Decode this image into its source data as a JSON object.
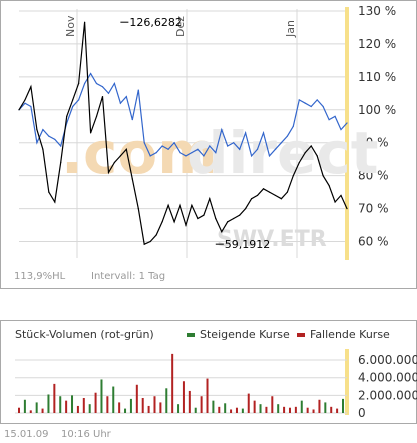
{
  "colors": {
    "price_line": "#000000",
    "index_line": "#3366cc",
    "rising": "#2e7d32",
    "falling": "#b22222",
    "grid": "#d8d8d8",
    "highlight": "#f7e08a",
    "watermark_com": "#f4d9b3",
    "watermark_direct": "#e9e9e9",
    "watermark_ticker": "#dcdcdc"
  },
  "watermark": {
    "brand_prefix": ".com",
    "brand_suffix": "direct",
    "ticker": "SWV.ETR"
  },
  "price_footer": {
    "range": "113,9%HL",
    "interval": "Intervall: 1 Tag"
  },
  "volume_panel": {
    "title": "Stück-Volumen (rot-grün)",
    "legend_rising": "Steigende Kurse",
    "legend_falling": "Fallende Kurse"
  },
  "timestamp": {
    "date": "15.01.09",
    "time": "10:16 Uhr"
  },
  "chart_data": [
    {
      "type": "line",
      "x_ticks": [
        "Nov",
        "Dez",
        "Jan"
      ],
      "y_ticks": [
        "60 %",
        "70 %",
        "80 %",
        "90 %",
        "100 %",
        "110 %",
        "120 %",
        "130 %"
      ],
      "ylim": [
        55,
        130
      ],
      "grid": true,
      "annotations": [
        {
          "label": "126,6282",
          "x": 17,
          "y": 126.6
        },
        {
          "label": "59,1912",
          "x": 33,
          "y": 59.2
        }
      ],
      "series": [
        {
          "values": [
            100,
            103,
            107,
            94,
            88,
            75,
            72,
            84,
            98,
            103,
            108,
            126.6,
            93,
            98,
            104,
            81,
            84,
            86,
            88,
            79,
            70,
            59.2,
            60,
            62,
            66,
            71,
            66,
            71,
            65,
            71,
            67,
            68,
            73,
            67,
            63,
            66,
            67,
            68,
            70,
            73,
            74,
            76,
            75,
            74,
            73,
            75,
            80,
            84,
            87,
            89,
            86,
            80,
            77,
            72,
            74,
            70
          ]
        },
        {
          "values": [
            100,
            102,
            101,
            90,
            94,
            92,
            91,
            89,
            96,
            101,
            103,
            108,
            111,
            108,
            107,
            105,
            108,
            102,
            104,
            97,
            106,
            90,
            86,
            87,
            89,
            88,
            90,
            87,
            86,
            87,
            88,
            86,
            89,
            87,
            94,
            89,
            90,
            88,
            93,
            86,
            88,
            93,
            86,
            88,
            90,
            92,
            95,
            103,
            102,
            101,
            103,
            101,
            97,
            98,
            94,
            96
          ]
        }
      ]
    },
    {
      "type": "bar",
      "y_ticks": [
        "6.000.000",
        "4.000.000",
        "2.000.000",
        "0"
      ],
      "ylim": [
        0,
        6800000
      ],
      "rising_indices": [
        1,
        3,
        5,
        7,
        9,
        12,
        14,
        16,
        18,
        19,
        25,
        27,
        30,
        33,
        35,
        38,
        41,
        44,
        48,
        52,
        55
      ],
      "values": [
        600000,
        1500000,
        300000,
        1200000,
        500000,
        2100000,
        3300000,
        1900000,
        1400000,
        2000000,
        800000,
        1700000,
        1000000,
        2300000,
        3800000,
        1900000,
        3000000,
        1200000,
        500000,
        1600000,
        3200000,
        1700000,
        800000,
        1900000,
        1200000,
        2800000,
        6700000,
        1000000,
        3600000,
        2500000,
        600000,
        1900000,
        3900000,
        1400000,
        700000,
        1100000,
        400000,
        600000,
        500000,
        2200000,
        1400000,
        1000000,
        700000,
        1900000,
        1000000,
        700000,
        600000,
        700000,
        1400000,
        600000,
        400000,
        1500000,
        1200000,
        700000,
        500000,
        1600000
      ]
    }
  ]
}
